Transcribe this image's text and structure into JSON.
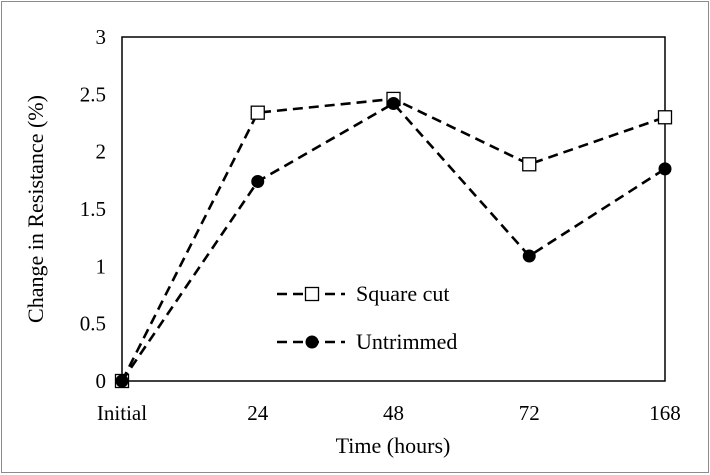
{
  "chart_data": {
    "type": "line",
    "categories": [
      "Initial",
      "24",
      "48",
      "72",
      "168"
    ],
    "xlabel": "Time (hours)",
    "ylabel": "Change in Resistance (%)",
    "ylim": [
      0,
      3
    ],
    "yticks": [
      "0",
      "0.5",
      "1",
      "1.5",
      "2",
      "2.5",
      "3"
    ],
    "grid": false,
    "legend_position": "center-left",
    "series": [
      {
        "name": "Square cut",
        "values": [
          0,
          2.34,
          2.46,
          1.89,
          2.3
        ],
        "marker": "square-open",
        "line": "dashed",
        "color": "#000000"
      },
      {
        "name": "Untrimmed",
        "values": [
          0,
          1.74,
          2.42,
          1.09,
          1.85
        ],
        "marker": "circle-filled",
        "line": "dashed",
        "color": "#000000"
      }
    ]
  }
}
